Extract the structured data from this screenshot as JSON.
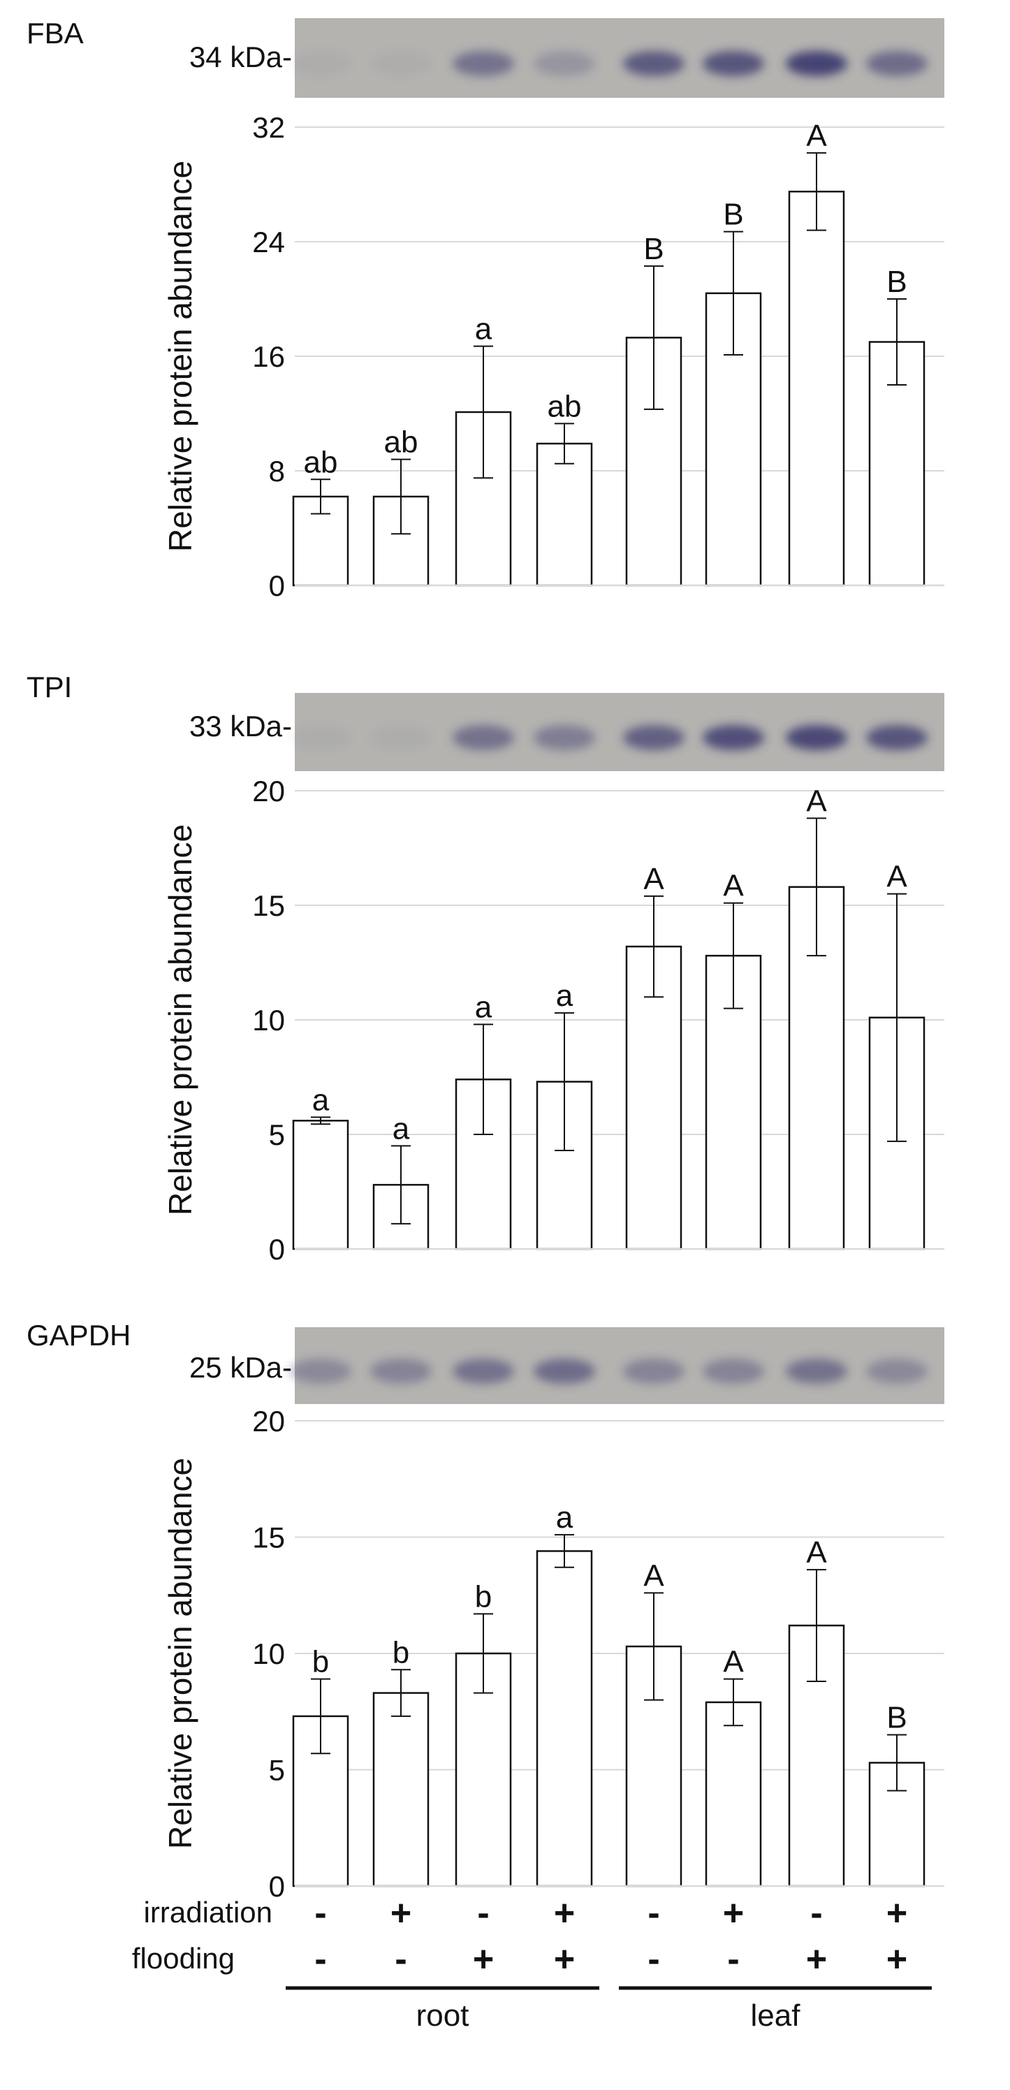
{
  "chart_data": [
    {
      "type": "bar",
      "panel_label": "FBA",
      "blot_marker": "34 kDa-",
      "ylabel": "Relative protein abundance",
      "ylim": [
        0,
        32
      ],
      "yticks": [
        0,
        8,
        16,
        24,
        32
      ],
      "grid": true,
      "values": [
        6.2,
        6.2,
        12.1,
        9.9,
        17.3,
        20.4,
        27.5,
        17.0
      ],
      "errors": [
        1.2,
        2.6,
        4.6,
        1.4,
        5.0,
        4.3,
        2.7,
        3.0
      ],
      "significance": [
        "ab",
        "ab",
        "a",
        "ab",
        "B",
        "B",
        "A",
        "B"
      ],
      "bands": [
        0.05,
        0.05,
        0.55,
        0.25,
        0.75,
        0.8,
        0.95,
        0.6
      ]
    },
    {
      "type": "bar",
      "panel_label": "TPI",
      "blot_marker": "33 kDa-",
      "ylabel": "Relative protein abundance",
      "ylim": [
        0,
        20
      ],
      "yticks": [
        0,
        5,
        10,
        15,
        20
      ],
      "grid": true,
      "values": [
        5.6,
        2.8,
        7.4,
        7.3,
        13.2,
        12.8,
        15.8,
        10.1
      ],
      "errors": [
        0.15,
        1.7,
        2.4,
        3.0,
        2.2,
        2.3,
        3.0,
        5.4
      ],
      "significance": [
        "a",
        "a",
        "a",
        "a",
        "A",
        "A",
        "A",
        "A"
      ],
      "bands": [
        0.05,
        0.05,
        0.55,
        0.45,
        0.7,
        0.85,
        0.9,
        0.8
      ]
    },
    {
      "type": "bar",
      "panel_label": "GAPDH",
      "blot_marker": "25 kDa-",
      "ylabel": "Relative protein abundance",
      "ylim": [
        0,
        20
      ],
      "yticks": [
        0,
        5,
        10,
        15,
        20
      ],
      "grid": true,
      "values": [
        7.3,
        8.3,
        10.0,
        14.4,
        10.3,
        7.9,
        11.2,
        5.3
      ],
      "errors": [
        1.6,
        1.0,
        1.7,
        0.7,
        2.3,
        1.0,
        2.4,
        1.2
      ],
      "significance": [
        "b",
        "b",
        "b",
        "a",
        "A",
        "A",
        "A",
        "B"
      ],
      "bands": [
        0.35,
        0.4,
        0.55,
        0.6,
        0.4,
        0.4,
        0.55,
        0.35
      ]
    }
  ],
  "conditions": {
    "rows": [
      {
        "label": "irradiation",
        "signs": [
          "-",
          "+",
          "-",
          "+",
          "-",
          "+",
          "-",
          "+"
        ]
      },
      {
        "label": "flooding",
        "signs": [
          "-",
          "-",
          "+",
          "+",
          "-",
          "-",
          "+",
          "+"
        ]
      }
    ],
    "groups": [
      {
        "label": "root",
        "bars": [
          0,
          3
        ]
      },
      {
        "label": "leaf",
        "bars": [
          4,
          7
        ]
      }
    ]
  },
  "colors": {
    "bar_fill": "#ffffff",
    "bar_stroke": "#111111",
    "grid": "#d9d9d9",
    "blot_background": "#b4b3b0",
    "band": "#403e70"
  }
}
